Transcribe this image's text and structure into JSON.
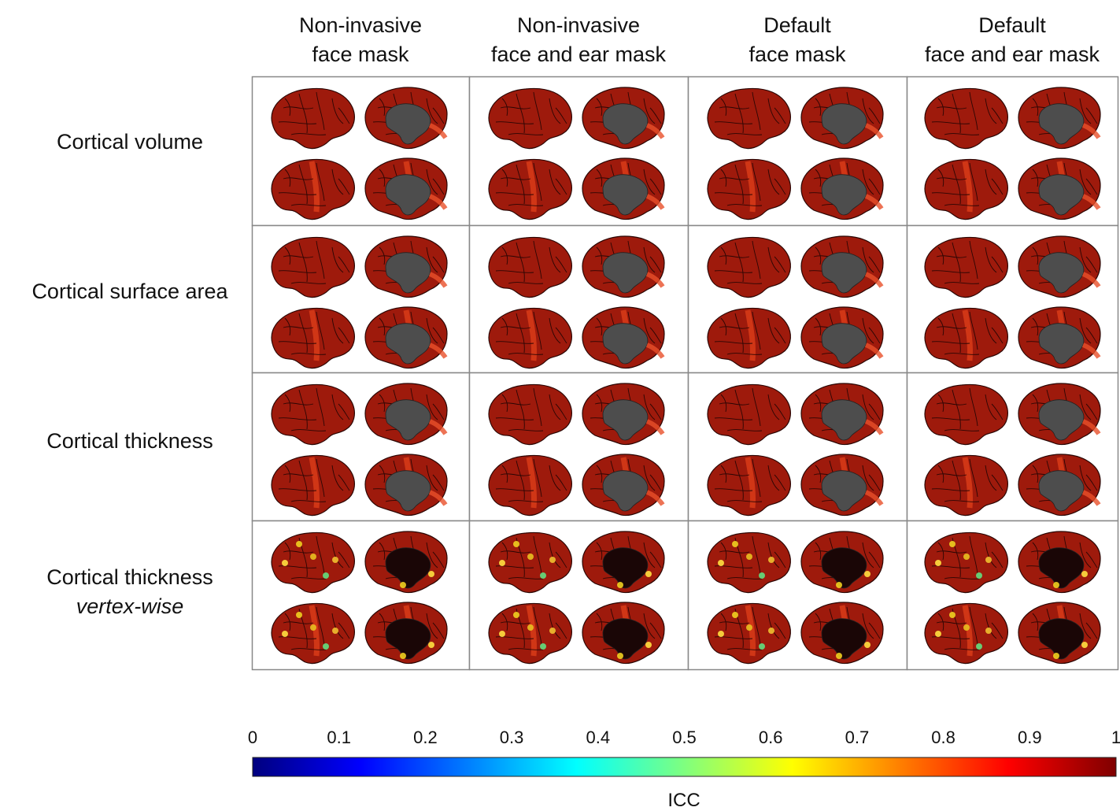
{
  "columns": [
    {
      "line1": "Non-invasive",
      "line2": "face mask"
    },
    {
      "line1": "Non-invasive",
      "line2": "face and ear mask"
    },
    {
      "line1": "Default",
      "line2": "face mask"
    },
    {
      "line1": "Default",
      "line2": "face and ear mask"
    }
  ],
  "rows": [
    {
      "line1": "Cortical volume",
      "line2": ""
    },
    {
      "line1": "Cortical surface area",
      "line2": ""
    },
    {
      "line1": "Cortical thickness",
      "line2": ""
    },
    {
      "line1": "Cortical thickness",
      "line2": "vertex-wise"
    }
  ],
  "colorbar": {
    "label": "ICC",
    "min": 0,
    "max": 1,
    "ticks": [
      "0",
      "0.1",
      "0.2",
      "0.3",
      "0.4",
      "0.5",
      "0.6",
      "0.7",
      "0.8",
      "0.9",
      "1"
    ],
    "colormap": "jet",
    "stops": [
      "#00007f",
      "#0000ff",
      "#007fff",
      "#00ffff",
      "#7fff7f",
      "#ffff00",
      "#ff7f00",
      "#ff0000",
      "#7f0000"
    ]
  },
  "colors": {
    "cortex": "#9e1a0c",
    "medial_wall_region_based": "#4d4d4d",
    "medial_wall_vertex_wise": "#1a0606",
    "panel_border": "#888888"
  }
}
